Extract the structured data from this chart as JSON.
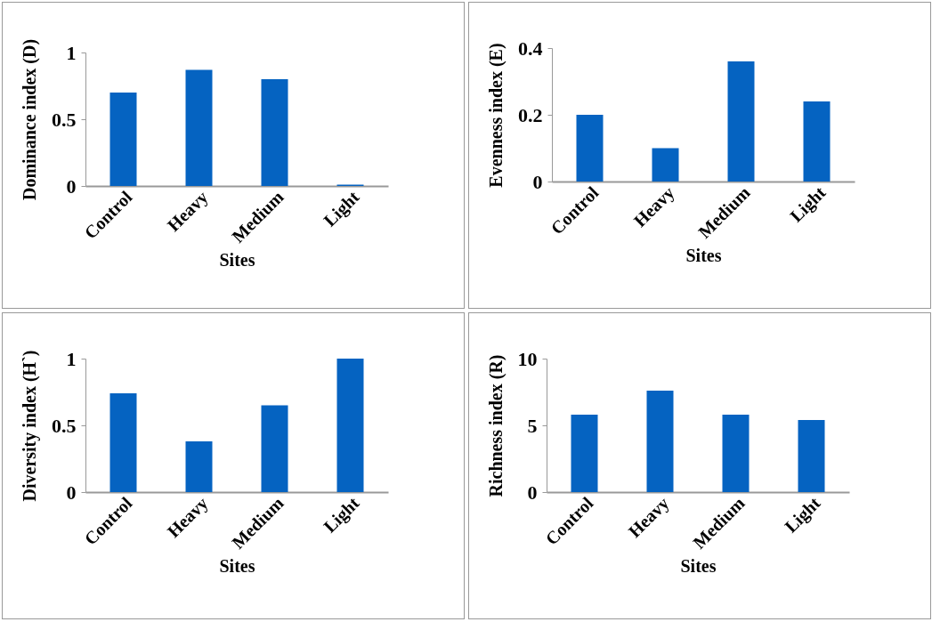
{
  "chart_data": [
    {
      "type": "bar",
      "xlabel": "Sites",
      "ylabel": "Dominance index (D)",
      "categories": [
        "Control",
        "Heavy",
        "Medium",
        "Light"
      ],
      "values": [
        0.7,
        0.87,
        0.8,
        0.01
      ],
      "color": "#0563c1",
      "ylim": [
        0,
        1
      ],
      "yticks": [
        0,
        0.5,
        1
      ],
      "grid": false
    },
    {
      "type": "bar",
      "xlabel": "Sites",
      "ylabel": "Evenness index (E)",
      "categories": [
        "Control",
        "Heavy",
        "Medium",
        "Light"
      ],
      "values": [
        0.2,
        0.1,
        0.36,
        0.24
      ],
      "color": "#0563c1",
      "ylim": [
        0,
        0.4
      ],
      "yticks": [
        0,
        0.2,
        0.4
      ],
      "grid": false
    },
    {
      "type": "bar",
      "xlabel": "Sites",
      "ylabel": "Diversity index (H`)",
      "categories": [
        "Control",
        "Heavy",
        "Medium",
        "Light"
      ],
      "values": [
        0.74,
        0.38,
        0.65,
        1.0
      ],
      "color": "#0563c1",
      "ylim": [
        0,
        1
      ],
      "yticks": [
        0,
        0.5,
        1
      ],
      "grid": false
    },
    {
      "type": "bar",
      "xlabel": "Sites",
      "ylabel": "Richness index (R)",
      "categories": [
        "Control",
        "Heavy",
        "Medium",
        "Light"
      ],
      "values": [
        5.8,
        7.6,
        5.8,
        5.4
      ],
      "color": "#0563c1",
      "ylim": [
        0,
        10
      ],
      "yticks": [
        0,
        5,
        10
      ],
      "grid": false
    }
  ]
}
